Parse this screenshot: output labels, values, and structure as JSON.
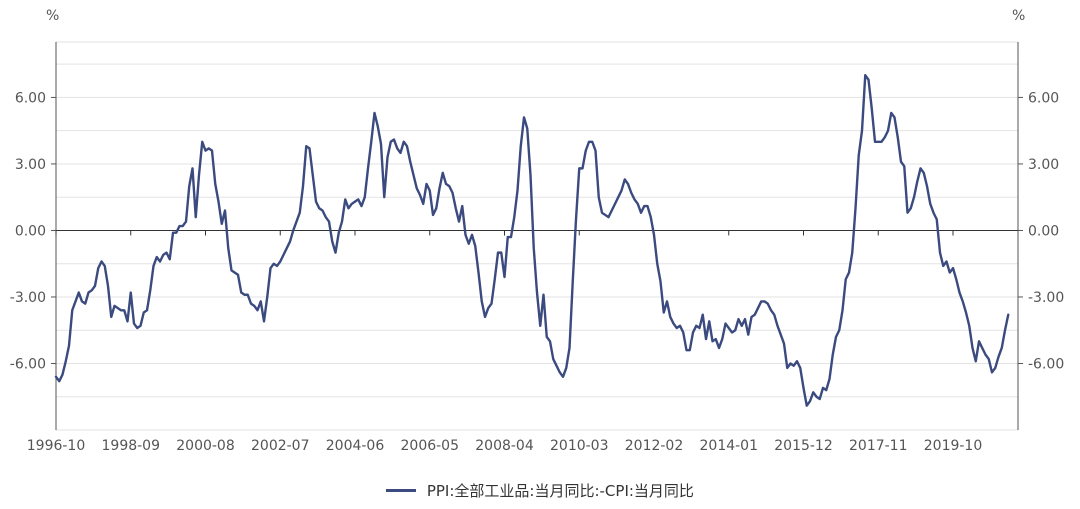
{
  "chart_data": {
    "type": "line",
    "y_unit_left": "%",
    "y_unit_right": "%",
    "ylim": [
      -9.0,
      8.5
    ],
    "y_ticks": [
      -6.0,
      -3.0,
      0.0,
      3.0,
      6.0
    ],
    "y_tick_labels": [
      "-6.00",
      "-3.00",
      "0.00",
      "3.00",
      "6.00"
    ],
    "x_tick_labels": [
      "1996-10",
      "1998-09",
      "2000-08",
      "2002-07",
      "2004-06",
      "2006-05",
      "2008-04",
      "2010-03",
      "2012-02",
      "2014-01",
      "2015-12",
      "2017-11",
      "2019-10"
    ],
    "x_start": "1996-10",
    "series": [
      {
        "name": "PPI:全部工业品:当月同比:-CPI:当月同比",
        "color": "#3b4a7f",
        "values": [
          -6.6,
          -6.8,
          -6.5,
          -5.9,
          -5.2,
          -3.6,
          -3.2,
          -2.8,
          -3.2,
          -3.3,
          -2.8,
          -2.7,
          -2.5,
          -1.7,
          -1.4,
          -1.6,
          -2.5,
          -3.9,
          -3.4,
          -3.5,
          -3.6,
          -3.6,
          -4.1,
          -2.8,
          -4.2,
          -4.4,
          -4.3,
          -3.7,
          -3.6,
          -2.7,
          -1.6,
          -1.2,
          -1.4,
          -1.1,
          -1.0,
          -1.3,
          -0.1,
          -0.1,
          0.2,
          0.2,
          0.4,
          2.0,
          2.8,
          0.6,
          2.5,
          4.0,
          3.6,
          3.7,
          3.6,
          2.1,
          1.3,
          0.3,
          0.9,
          -0.8,
          -1.8,
          -1.9,
          -2.0,
          -2.8,
          -2.9,
          -2.9,
          -3.3,
          -3.4,
          -3.6,
          -3.2,
          -4.1,
          -3.0,
          -1.7,
          -1.5,
          -1.6,
          -1.4,
          -1.1,
          -0.8,
          -0.5,
          0.0,
          0.4,
          0.8,
          2.0,
          3.8,
          3.7,
          2.5,
          1.3,
          1.0,
          0.9,
          0.6,
          0.4,
          -0.5,
          -1.0,
          -0.1,
          0.4,
          1.4,
          1.0,
          1.2,
          1.3,
          1.4,
          1.1,
          1.5,
          2.8,
          4.0,
          5.3,
          4.7,
          3.9,
          1.5,
          3.3,
          4.0,
          4.1,
          3.7,
          3.5,
          4.0,
          3.8,
          3.1,
          2.5,
          1.9,
          1.6,
          1.2,
          2.1,
          1.8,
          0.7,
          1.0,
          1.9,
          2.6,
          2.1,
          2.0,
          1.7,
          1.0,
          0.4,
          1.1,
          -0.2,
          -0.6,
          -0.2,
          -0.7,
          -1.9,
          -3.2,
          -3.9,
          -3.5,
          -3.3,
          -2.2,
          -1.0,
          -1.0,
          -2.1,
          -0.3,
          -0.3,
          0.6,
          1.8,
          3.8,
          5.1,
          4.6,
          2.5,
          -0.8,
          -2.8,
          -4.3,
          -2.9,
          -4.8,
          -5.0,
          -5.8,
          -6.1,
          -6.4,
          -6.6,
          -6.2,
          -5.3,
          -2.3,
          0.5,
          2.8,
          2.8,
          3.6,
          4.0,
          4.0,
          3.6,
          1.5,
          0.8,
          0.7,
          0.6,
          0.9,
          1.2,
          1.5,
          1.8,
          2.3,
          2.1,
          1.7,
          1.4,
          1.2,
          0.8,
          1.1,
          1.1,
          0.6,
          -0.2,
          -1.5,
          -2.3,
          -3.7,
          -3.2,
          -3.9,
          -4.2,
          -4.4,
          -4.3,
          -4.6,
          -5.4,
          -5.4,
          -4.6,
          -4.3,
          -4.4,
          -3.8,
          -4.9,
          -4.1,
          -5.0,
          -4.9,
          -5.3,
          -4.9,
          -4.2,
          -4.4,
          -4.6,
          -4.5,
          -4.0,
          -4.3,
          -4.0,
          -4.7,
          -3.9,
          -3.8,
          -3.5,
          -3.2,
          -3.2,
          -3.3,
          -3.6,
          -3.8,
          -4.3,
          -4.7,
          -5.1,
          -6.2,
          -6.0,
          -6.1,
          -5.9,
          -6.2,
          -7.1,
          -7.9,
          -7.7,
          -7.3,
          -7.5,
          -7.6,
          -7.1,
          -7.2,
          -6.7,
          -5.6,
          -4.8,
          -4.5,
          -3.6,
          -2.2,
          -1.9,
          -1.0,
          1.0,
          3.4,
          4.5,
          7.0,
          6.8,
          5.5,
          4.0,
          4.0,
          4.0,
          4.2,
          4.5,
          5.3,
          5.1,
          4.2,
          3.1,
          2.9,
          0.8,
          1.0,
          1.5,
          2.2,
          2.8,
          2.6,
          2.0,
          1.2,
          0.8,
          0.5,
          -1.0,
          -1.6,
          -1.4,
          -1.9,
          -1.7,
          -2.2,
          -2.8,
          -3.2,
          -3.7,
          -4.3,
          -5.3,
          -5.9,
          -5.0,
          -5.3,
          -5.6,
          -5.8,
          -6.4,
          -6.2,
          -5.7,
          -5.3,
          -4.5,
          -3.8
        ]
      }
    ]
  }
}
